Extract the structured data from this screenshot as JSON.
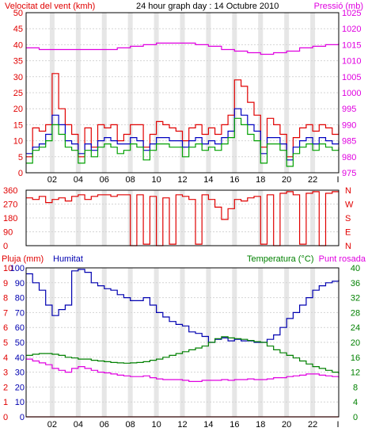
{
  "colors": {
    "wind": "#e00000",
    "gust": "#00a000",
    "avg_wind": "#0000c0",
    "pressure": "#e000e0",
    "direction": "#e00000",
    "humidity": "#0000b0",
    "temperature": "#008000",
    "dewpoint": "#e000e0",
    "rain": "#e00000",
    "frame": "#000000",
    "grid": "#d4d4d4",
    "hour_band": "#e6e6e6"
  },
  "chart_data": [
    {
      "type": "line",
      "id": "wind",
      "title": "24 hour graph day : 14 Octubre 2010",
      "left_label": "Velocitat del vent (kmh)",
      "right_label": "Pressió (mb)",
      "x_ticks": [
        "02",
        "04",
        "06",
        "08",
        "10",
        "12",
        "14",
        "16",
        "18",
        "20",
        "22",
        "I"
      ],
      "y_left_ticks": [
        "0",
        "5",
        "10",
        "15",
        "20",
        "25",
        "30",
        "35",
        "40",
        "45",
        "50"
      ],
      "y_left_range": [
        0,
        50
      ],
      "y_right_ticks": [
        "975",
        "980",
        "985",
        "990",
        "995",
        "1000",
        "1005",
        "1010",
        "1015",
        "1020",
        "1025"
      ],
      "y_right_range": [
        975,
        1025
      ],
      "grid": true,
      "x_range": [
        0,
        24
      ],
      "series": [
        {
          "key": "pressure",
          "axis": "right",
          "x": [
            0,
            1,
            2,
            3,
            4,
            5,
            6,
            7,
            8,
            9,
            10,
            11,
            12,
            13,
            14,
            15,
            16,
            17,
            18,
            19,
            20,
            21,
            22,
            23,
            24
          ],
          "values": [
            1014,
            1013.5,
            1013.5,
            1013.5,
            1013.5,
            1013.5,
            1013.5,
            1014,
            1014.5,
            1015,
            1015.5,
            1015.5,
            1015.5,
            1015,
            1014.5,
            1013.5,
            1013,
            1012.5,
            1012,
            1012.5,
            1013,
            1014,
            1014.5,
            1015,
            1015.5
          ]
        },
        {
          "key": "wind",
          "axis": "left",
          "x": [
            0,
            0.5,
            1,
            1.5,
            2,
            2.5,
            3,
            3.5,
            4,
            4.5,
            5,
            5.5,
            6,
            6.5,
            7,
            7.5,
            8,
            8.5,
            9,
            9.5,
            10,
            10.5,
            11,
            11.5,
            12,
            12.5,
            13,
            13.5,
            14,
            14.5,
            15,
            15.5,
            16,
            16.5,
            17,
            17.5,
            18,
            18.5,
            19,
            19.5,
            20,
            20.5,
            21,
            21.5,
            22,
            22.5,
            23,
            23.5,
            24
          ],
          "values": [
            5,
            14,
            13,
            15,
            31,
            20,
            15,
            12,
            5,
            14,
            8,
            15,
            14,
            15,
            10,
            12,
            15,
            15,
            8,
            12,
            16,
            15,
            14,
            13,
            10,
            14,
            15,
            12,
            14,
            12,
            15,
            18,
            29,
            27,
            22,
            18,
            8,
            17,
            15,
            12,
            5,
            11,
            14,
            15,
            13,
            15,
            14,
            12,
            15
          ]
        },
        {
          "key": "avg_wind",
          "axis": "left",
          "x": [
            0,
            0.5,
            1,
            1.5,
            2,
            2.5,
            3,
            3.5,
            4,
            4.5,
            5,
            5.5,
            6,
            6.5,
            7,
            7.5,
            8,
            8.5,
            9,
            9.5,
            10,
            10.5,
            11,
            11.5,
            12,
            12.5,
            13,
            13.5,
            14,
            14.5,
            15,
            15.5,
            16,
            16.5,
            17,
            17.5,
            18,
            18.5,
            19,
            19.5,
            20,
            20.5,
            21,
            21.5,
            22,
            22.5,
            23,
            23.5,
            24
          ],
          "values": [
            6,
            8,
            9,
            12,
            18,
            15,
            10,
            9,
            6,
            9,
            7,
            10,
            11,
            10,
            9,
            9,
            11,
            10,
            7,
            9,
            11,
            11,
            10,
            10,
            8,
            10,
            11,
            9,
            10,
            9,
            11,
            13,
            20,
            18,
            15,
            13,
            6,
            11,
            11,
            9,
            4,
            8,
            10,
            11,
            9,
            11,
            10,
            9,
            10
          ]
        },
        {
          "key": "gust",
          "axis": "left",
          "x": [
            0,
            0.5,
            1,
            1.5,
            2,
            2.5,
            3,
            3.5,
            4,
            4.5,
            5,
            5.5,
            6,
            6.5,
            7,
            7.5,
            8,
            8.5,
            9,
            9.5,
            10,
            10.5,
            11,
            11.5,
            12,
            12.5,
            13,
            13.5,
            14,
            14.5,
            15,
            15.5,
            16,
            16.5,
            17,
            17.5,
            18,
            18.5,
            19,
            19.5,
            20,
            20.5,
            21,
            21.5,
            22,
            22.5,
            23,
            23.5,
            24
          ],
          "values": [
            3,
            7,
            8,
            10,
            15,
            12,
            8,
            7,
            3,
            7,
            5,
            8,
            9,
            8,
            6,
            7,
            9,
            8,
            4,
            7,
            9,
            9,
            8,
            8,
            5,
            8,
            9,
            7,
            8,
            7,
            9,
            11,
            17,
            15,
            12,
            10,
            3,
            9,
            9,
            7,
            2,
            6,
            8,
            9,
            7,
            9,
            8,
            7,
            8
          ]
        }
      ]
    },
    {
      "type": "line",
      "id": "direction",
      "y_left_ticks": [
        "360",
        "270",
        "180",
        "90",
        "0"
      ],
      "y_left_range": [
        0,
        360
      ],
      "y_right_ticks": [
        "N",
        "W",
        "S",
        "E",
        "N"
      ],
      "grid": true,
      "x_range": [
        0,
        24
      ],
      "series": [
        {
          "key": "direction",
          "axis": "left",
          "x": [
            0,
            0.5,
            1,
            1.5,
            2,
            2.5,
            3,
            3.5,
            4,
            4.5,
            5,
            5.5,
            6,
            6.5,
            7,
            7.5,
            8,
            8.5,
            9,
            9.5,
            10,
            10.5,
            11,
            11.5,
            12,
            12.5,
            13,
            13.5,
            14,
            14.5,
            15,
            15.5,
            16,
            16.5,
            17,
            17.5,
            18,
            18.5,
            19,
            19.5,
            20,
            20.5,
            21,
            21.5,
            22,
            22.5,
            23,
            23.5,
            24
          ],
          "values": [
            310,
            300,
            320,
            280,
            300,
            310,
            290,
            320,
            330,
            300,
            320,
            330,
            330,
            320,
            330,
            330,
            0,
            330,
            10,
            320,
            0,
            310,
            10,
            330,
            320,
            300,
            10,
            330,
            300,
            250,
            170,
            240,
            300,
            290,
            310,
            320,
            10,
            330,
            0,
            340,
            350,
            330,
            10,
            340,
            350,
            0,
            340,
            350,
            350
          ]
        }
      ]
    },
    {
      "type": "line",
      "id": "humidity",
      "left_label": "Pluja (mm)",
      "left_label_2": "Humitat",
      "right_label": "Temperatura (°C)",
      "right_label_2": "Punt rosada",
      "x_ticks": [
        "02",
        "04",
        "06",
        "08",
        "10",
        "12",
        "14",
        "16",
        "18",
        "20",
        "22",
        "I"
      ],
      "y_left_ticks": [
        "0",
        "1",
        "2",
        "3",
        "4",
        "5",
        "6",
        "7",
        "8",
        "9",
        "10"
      ],
      "y_left_range": [
        0,
        10
      ],
      "y_left2_ticks": [
        "0",
        "10",
        "20",
        "30",
        "40",
        "50",
        "60",
        "70",
        "80",
        "90",
        "100"
      ],
      "y_left2_range": [
        0,
        100
      ],
      "y_right_ticks": [
        "0",
        "4",
        "8",
        "12",
        "16",
        "20",
        "24",
        "28",
        "32",
        "36",
        "40"
      ],
      "y_right_range": [
        0,
        40
      ],
      "grid": true,
      "x_range": [
        0,
        24
      ],
      "series": [
        {
          "key": "humidity",
          "axis": "left2",
          "x": [
            0,
            0.5,
            1,
            1.5,
            2,
            2.5,
            3,
            3.5,
            4,
            4.5,
            5,
            5.5,
            6,
            6.5,
            7,
            7.5,
            8,
            8.5,
            9,
            9.5,
            10,
            10.5,
            11,
            11.5,
            12,
            12.5,
            13,
            13.5,
            14,
            14.5,
            15,
            15.5,
            16,
            16.5,
            17,
            17.5,
            18,
            18.5,
            19,
            19.5,
            20,
            20.5,
            21,
            21.5,
            22,
            22.5,
            23,
            23.5,
            24
          ],
          "values": [
            96,
            90,
            85,
            75,
            68,
            72,
            75,
            98,
            99,
            97,
            90,
            88,
            86,
            85,
            82,
            80,
            78,
            78,
            80,
            75,
            70,
            67,
            64,
            62,
            61,
            57,
            56,
            54,
            50,
            52,
            53,
            51,
            52,
            51,
            51,
            50,
            50,
            52,
            55,
            60,
            66,
            70,
            75,
            80,
            85,
            88,
            90,
            91,
            92
          ]
        },
        {
          "key": "temperature",
          "axis": "right",
          "x": [
            0,
            0.5,
            1,
            1.5,
            2,
            2.5,
            3,
            3.5,
            4,
            4.5,
            5,
            5.5,
            6,
            6.5,
            7,
            7.5,
            8,
            8.5,
            9,
            9.5,
            10,
            10.5,
            11,
            11.5,
            12,
            12.5,
            13,
            13.5,
            14,
            14.5,
            15,
            15.5,
            16,
            16.5,
            17,
            17.5,
            18,
            18.5,
            19,
            19.5,
            20,
            20.5,
            21,
            21.5,
            22,
            22.5,
            23,
            23.5,
            24
          ],
          "values": [
            16.5,
            16.8,
            17,
            17,
            16.8,
            16.5,
            16,
            15.8,
            15.5,
            15.5,
            15.2,
            15,
            14.8,
            14.6,
            14.5,
            14.4,
            14.5,
            14.6,
            14.8,
            15.2,
            15.5,
            16,
            16.5,
            17,
            17.5,
            18,
            18.5,
            19,
            20,
            21,
            21.5,
            21.2,
            21,
            20.8,
            20.5,
            20.2,
            20,
            19,
            18,
            17.2,
            16.5,
            15.8,
            15,
            14.2,
            13.5,
            13,
            12.5,
            12,
            11.5
          ]
        },
        {
          "key": "dewpoint",
          "axis": "right",
          "x": [
            0,
            0.5,
            1,
            1.5,
            2,
            2.5,
            3,
            3.5,
            4,
            4.5,
            5,
            5.5,
            6,
            6.5,
            7,
            7.5,
            8,
            8.5,
            9,
            9.5,
            10,
            10.5,
            11,
            11.5,
            12,
            12.5,
            13,
            13.5,
            14,
            14.5,
            15,
            15.5,
            16,
            16.5,
            17,
            17.5,
            18,
            18.5,
            19,
            19.5,
            20,
            20.5,
            21,
            21.5,
            22,
            22.5,
            23,
            23.5,
            24
          ],
          "values": [
            15.5,
            15,
            14.5,
            14,
            13,
            12.5,
            12,
            13,
            13.5,
            13,
            12.5,
            12,
            11.8,
            11.5,
            11.2,
            11,
            10.8,
            10.8,
            11,
            10.5,
            10.2,
            10,
            10,
            10,
            9.8,
            9.5,
            9.5,
            9.8,
            9.8,
            9.8,
            10,
            9.8,
            10,
            10,
            10.2,
            10,
            10,
            10.2,
            10.5,
            10.5,
            10.8,
            11,
            11.2,
            11.5,
            11.5,
            11.2,
            11,
            10.8,
            10.5
          ]
        },
        {
          "key": "rain",
          "axis": "left",
          "x": [
            0,
            24
          ],
          "values": [
            0,
            0
          ]
        }
      ]
    }
  ]
}
